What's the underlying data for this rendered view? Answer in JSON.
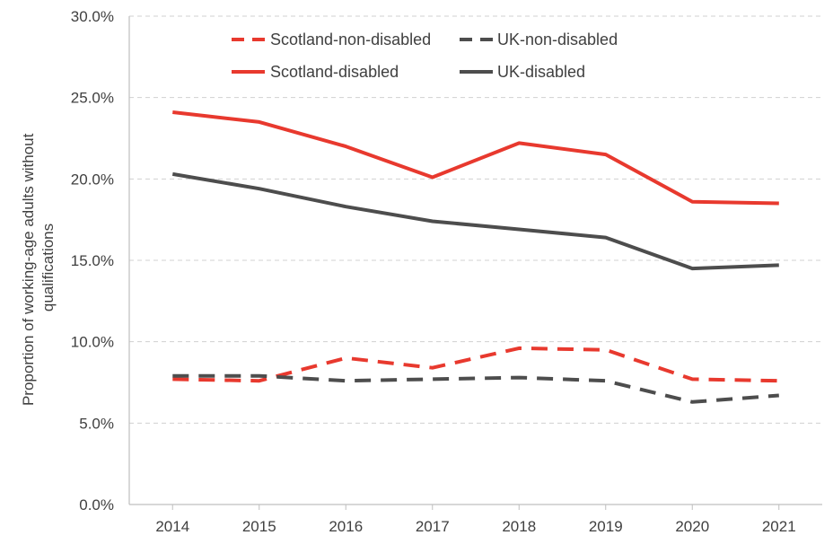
{
  "chart_data": {
    "type": "line",
    "title": "",
    "xlabel": "",
    "ylabel_lines": [
      "Proportion of working-age adults without",
      "qualifications"
    ],
    "categories": [
      "2014",
      "2015",
      "2016",
      "2017",
      "2018",
      "2019",
      "2020",
      "2021"
    ],
    "ylim": [
      0,
      30
    ],
    "yticks": [
      0,
      5,
      10,
      15,
      20,
      25,
      30
    ],
    "ytick_labels": [
      "0.0%",
      "5.0%",
      "10.0%",
      "15.0%",
      "20.0%",
      "25.0%",
      "30.0%"
    ],
    "grid": true,
    "legend_position": "top",
    "series": [
      {
        "name": "Scotland-non-disabled",
        "color": "#e8392e",
        "dashed": true,
        "values": [
          7.7,
          7.6,
          9.0,
          8.4,
          9.6,
          9.5,
          7.7,
          7.6
        ]
      },
      {
        "name": "UK-non-disabled",
        "color": "#4d4d4d",
        "dashed": true,
        "values": [
          7.9,
          7.9,
          7.6,
          7.7,
          7.8,
          7.6,
          6.3,
          6.7
        ]
      },
      {
        "name": "Scotland-disabled",
        "color": "#e8392e",
        "dashed": false,
        "values": [
          24.1,
          23.5,
          22.0,
          20.1,
          22.2,
          21.5,
          18.6,
          18.5
        ]
      },
      {
        "name": "UK-disabled",
        "color": "#4d4d4d",
        "dashed": false,
        "values": [
          20.3,
          19.4,
          18.3,
          17.4,
          16.9,
          16.4,
          14.5,
          14.7
        ]
      }
    ]
  }
}
